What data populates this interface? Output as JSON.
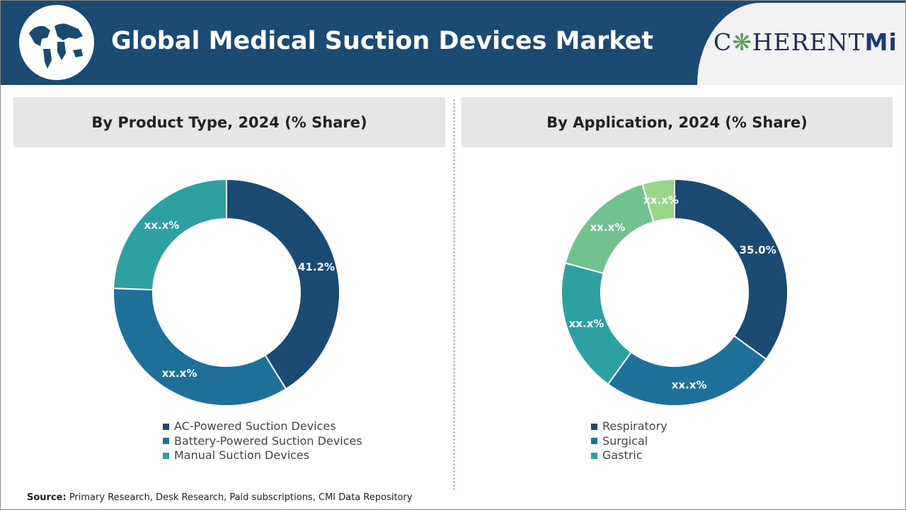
{
  "header": {
    "title": "Global Medical Suction Devices Market",
    "logo_text": "COHERENTMI"
  },
  "colors": {
    "header": "#1b4a72",
    "s1": "#1b4a72",
    "s2": "#1f7099",
    "s3": "#2fa0a0",
    "s4": "#72c28f",
    "s5": "#98d68a"
  },
  "chart_data": [
    {
      "type": "pie",
      "donut": true,
      "title": "By Product Type, 2024 (% Share)",
      "categories": [
        "AC-Powered Suction Devices",
        "Battery-Powered Suction Devices",
        "Manual Suction Devices"
      ],
      "values": [
        41.2,
        34.4,
        24.4
      ],
      "labels": [
        "41.2%",
        "xx.x%",
        "xx.x%"
      ],
      "legend": [
        "AC-Powered Suction Devices",
        "Battery-Powered Suction Devices",
        "Manual Suction Devices"
      ],
      "legend_position": "bottom"
    },
    {
      "type": "pie",
      "donut": true,
      "title": "By Application, 2024 (% Share)",
      "categories": [
        "Respiratory",
        "Surgical",
        "Gastric",
        "",
        ""
      ],
      "values": [
        35.0,
        25.0,
        19.2,
        16.2,
        4.6
      ],
      "labels": [
        "35.0%",
        "xx.x%",
        "xx.x%",
        "xx.x%",
        "xx.x%"
      ],
      "legend": [
        "Respiratory",
        "Surgical",
        "Gastric"
      ],
      "legend_position": "bottom"
    }
  ],
  "footer": {
    "source_label": "Source:",
    "source_text": " Primary Research, Desk Research, Paid subscriptions, CMI Data Repository"
  }
}
